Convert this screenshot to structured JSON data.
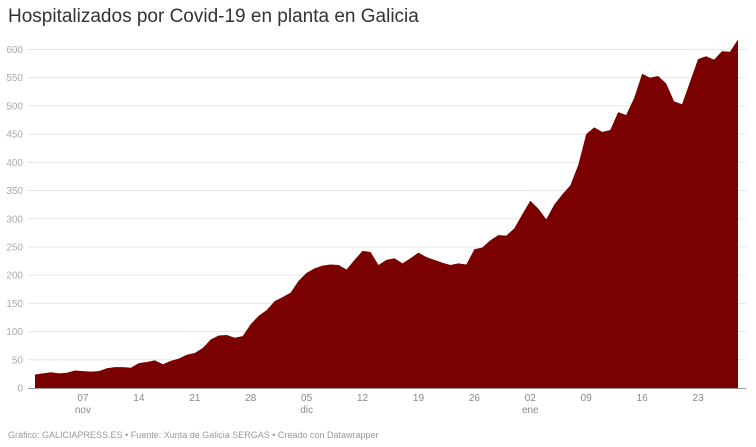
{
  "header": {
    "title": "Hospitalizados por Covid-19 en planta en Galicia"
  },
  "footer": {
    "text": "Gráfico: GALICIAPRESS.ES • Fuente: Xunta de Galicia SERGAS • Creado con Datawrapper"
  },
  "colors": {
    "area": "#7b0000",
    "grid": "#e6e6e6",
    "axis": "#999999",
    "title": "#333333"
  },
  "chart_data": {
    "type": "area",
    "title": "Hospitalizados por Covid-19 en planta en Galicia",
    "xlabel": "",
    "ylabel": "",
    "ylim": [
      0,
      600
    ],
    "yticks": [
      0,
      50,
      100,
      150,
      200,
      250,
      300,
      350,
      400,
      450,
      500,
      550,
      600
    ],
    "grid": true,
    "legend": false,
    "x_start": "2020-11-01",
    "x_end": "2021-01-28",
    "xticks": [
      {
        "label": "07",
        "sub": "nov",
        "day_index": 6
      },
      {
        "label": "14",
        "sub": "",
        "day_index": 13
      },
      {
        "label": "21",
        "sub": "",
        "day_index": 20
      },
      {
        "label": "28",
        "sub": "",
        "day_index": 27
      },
      {
        "label": "05",
        "sub": "dic",
        "day_index": 34
      },
      {
        "label": "12",
        "sub": "",
        "day_index": 41
      },
      {
        "label": "19",
        "sub": "",
        "day_index": 48
      },
      {
        "label": "26",
        "sub": "",
        "day_index": 55
      },
      {
        "label": "02",
        "sub": "ene",
        "day_index": 62
      },
      {
        "label": "09",
        "sub": "",
        "day_index": 69
      },
      {
        "label": "16",
        "sub": "",
        "day_index": 76
      },
      {
        "label": "23",
        "sub": "",
        "day_index": 83
      }
    ],
    "series": [
      {
        "name": "Hospitalizados en planta",
        "values": [
          24,
          26,
          28,
          26,
          27,
          31,
          30,
          29,
          30,
          35,
          37,
          37,
          36,
          44,
          46,
          49,
          42,
          48,
          52,
          59,
          62,
          71,
          86,
          93,
          94,
          89,
          92,
          113,
          128,
          138,
          154,
          161,
          169,
          190,
          204,
          212,
          217,
          219,
          218,
          210,
          227,
          243,
          241,
          218,
          227,
          230,
          221,
          230,
          240,
          232,
          227,
          222,
          218,
          221,
          219,
          246,
          249,
          262,
          271,
          270,
          283,
          308,
          332,
          318,
          299,
          325,
          343,
          359,
          395,
          450,
          462,
          454,
          457,
          489,
          484,
          514,
          557,
          550,
          553,
          540,
          508,
          503,
          543,
          583,
          588,
          582,
          597,
          596,
          618
        ]
      }
    ]
  }
}
